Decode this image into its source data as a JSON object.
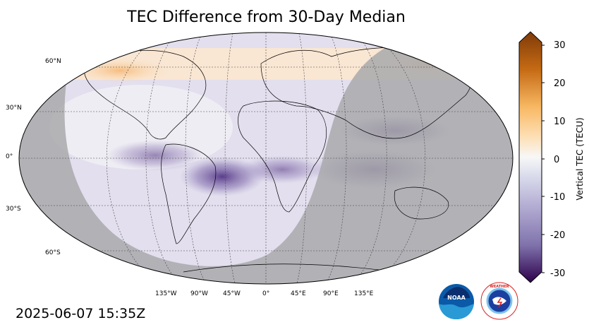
{
  "title": "TEC Difference from 30-Day Median",
  "timestamp": "2025-06-07 15:35Z",
  "colorbar": {
    "label": "Vertical TEC (TECU)",
    "ticks": [
      "30",
      "20",
      "10",
      "0",
      "-10",
      "-20",
      "-30"
    ],
    "range": [
      -30,
      30
    ],
    "colormap": "PuOr (purple = negative, orange = positive)"
  },
  "map": {
    "projection": "Robinson",
    "lat_labels": [
      "60°N",
      "30°N",
      "0°",
      "30°S",
      "60°S"
    ],
    "lon_labels": [
      "135°W",
      "90°W",
      "45°W",
      "0°",
      "45°E",
      "90°E",
      "135°E"
    ],
    "night_shading": "grey",
    "colors": {
      "ocean_day": "#ece9f2",
      "night": "#a9a9ac",
      "negative": "#5e3c99",
      "positive": "#f7c58a"
    }
  },
  "logos": {
    "noaa": {
      "text": "NOAA"
    },
    "nws": {
      "text": "NATIONAL WEATHER SERVICE"
    }
  }
}
